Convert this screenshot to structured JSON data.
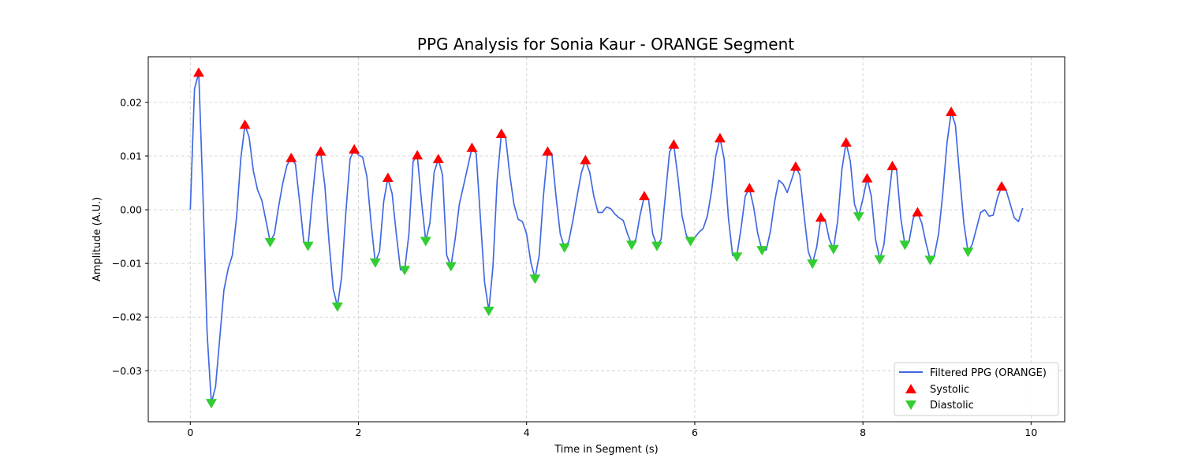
{
  "chart_data": {
    "type": "line",
    "title": "PPG Analysis for Sonia Kaur - ORANGE Segment",
    "xlabel": "Time in Segment (s)",
    "ylabel": "Amplitude (A.U.)",
    "xlim": [
      -0.5,
      10.4
    ],
    "ylim": [
      -0.0395,
      0.0285
    ],
    "xticks": [
      0,
      2,
      4,
      6,
      8,
      10
    ],
    "xtick_labels": [
      "0",
      "2",
      "4",
      "6",
      "8",
      "10"
    ],
    "yticks": [
      -0.03,
      -0.02,
      -0.01,
      0.0,
      0.01,
      0.02
    ],
    "ytick_labels": [
      "−0.03",
      "−0.02",
      "−0.01",
      "0.00",
      "0.01",
      "0.02"
    ],
    "grid": true,
    "legend_position": "lower-right",
    "colors": {
      "line": "#4169e1",
      "systolic": "#ff0000",
      "diastolic": "#32cd32"
    },
    "series": [
      {
        "name": "Filtered PPG (ORANGE)",
        "kind": "line",
        "points": [
          [
            0.0,
            0.0
          ],
          [
            0.05,
            0.0225
          ],
          [
            0.1,
            0.0255
          ],
          [
            0.15,
            0.003
          ],
          [
            0.2,
            -0.023
          ],
          [
            0.25,
            -0.036
          ],
          [
            0.3,
            -0.033
          ],
          [
            0.35,
            -0.024
          ],
          [
            0.4,
            -0.015
          ],
          [
            0.45,
            -0.011
          ],
          [
            0.5,
            -0.0085
          ],
          [
            0.55,
            -0.0015
          ],
          [
            0.6,
            0.0095
          ],
          [
            0.65,
            0.0158
          ],
          [
            0.7,
            0.0135
          ],
          [
            0.75,
            0.0072
          ],
          [
            0.8,
            0.0037
          ],
          [
            0.85,
            0.0018
          ],
          [
            0.9,
            -0.002
          ],
          [
            0.95,
            -0.006
          ],
          [
            1.0,
            -0.0045
          ],
          [
            1.05,
            0.0005
          ],
          [
            1.1,
            0.005
          ],
          [
            1.15,
            0.0083
          ],
          [
            1.2,
            0.0096
          ],
          [
            1.25,
            0.0085
          ],
          [
            1.3,
            0.0015
          ],
          [
            1.35,
            -0.006
          ],
          [
            1.4,
            -0.0067
          ],
          [
            1.45,
            0.002
          ],
          [
            1.5,
            0.0098
          ],
          [
            1.55,
            0.0108
          ],
          [
            1.6,
            0.0045
          ],
          [
            1.65,
            -0.006
          ],
          [
            1.7,
            -0.0148
          ],
          [
            1.75,
            -0.018
          ],
          [
            1.8,
            -0.0125
          ],
          [
            1.85,
            -0.0005
          ],
          [
            1.9,
            0.0095
          ],
          [
            1.95,
            0.0112
          ],
          [
            2.0,
            0.0102
          ],
          [
            2.05,
            0.0098
          ],
          [
            2.1,
            0.0062
          ],
          [
            2.15,
            -0.0025
          ],
          [
            2.2,
            -0.0098
          ],
          [
            2.25,
            -0.0078
          ],
          [
            2.3,
            0.0015
          ],
          [
            2.35,
            0.0059
          ],
          [
            2.4,
            0.003
          ],
          [
            2.45,
            -0.0045
          ],
          [
            2.5,
            -0.0112
          ],
          [
            2.55,
            -0.0112
          ],
          [
            2.6,
            -0.0045
          ],
          [
            2.65,
            0.009
          ],
          [
            2.7,
            0.0101
          ],
          [
            2.75,
            0.0015
          ],
          [
            2.8,
            -0.0058
          ],
          [
            2.85,
            -0.0025
          ],
          [
            2.9,
            0.007
          ],
          [
            2.95,
            0.0094
          ],
          [
            3.0,
            0.0065
          ],
          [
            3.05,
            -0.0085
          ],
          [
            3.1,
            -0.0105
          ],
          [
            3.15,
            -0.0055
          ],
          [
            3.2,
            0.001
          ],
          [
            3.25,
            0.0045
          ],
          [
            3.3,
            0.008
          ],
          [
            3.35,
            0.0115
          ],
          [
            3.4,
            0.0105
          ],
          [
            3.45,
            -0.0015
          ],
          [
            3.5,
            -0.0135
          ],
          [
            3.55,
            -0.0188
          ],
          [
            3.6,
            -0.0105
          ],
          [
            3.65,
            0.0055
          ],
          [
            3.7,
            0.0141
          ],
          [
            3.75,
            0.0135
          ],
          [
            3.8,
            0.0065
          ],
          [
            3.85,
            0.001
          ],
          [
            3.9,
            -0.0018
          ],
          [
            3.95,
            -0.0022
          ],
          [
            4.0,
            -0.0045
          ],
          [
            4.05,
            -0.0098
          ],
          [
            4.1,
            -0.0128
          ],
          [
            4.15,
            -0.0085
          ],
          [
            4.2,
            0.0025
          ],
          [
            4.25,
            0.0108
          ],
          [
            4.3,
            0.0105
          ],
          [
            4.35,
            0.0025
          ],
          [
            4.4,
            -0.0045
          ],
          [
            4.45,
            -0.007
          ],
          [
            4.5,
            -0.006
          ],
          [
            4.55,
            -0.002
          ],
          [
            4.6,
            0.0025
          ],
          [
            4.65,
            0.0068
          ],
          [
            4.7,
            0.0092
          ],
          [
            4.75,
            0.007
          ],
          [
            4.8,
            0.0025
          ],
          [
            4.85,
            -0.0005
          ],
          [
            4.9,
            -0.0005
          ],
          [
            4.95,
            0.0005
          ],
          [
            5.0,
            0.0002
          ],
          [
            5.05,
            -0.0008
          ],
          [
            5.1,
            -0.0015
          ],
          [
            5.15,
            -0.002
          ],
          [
            5.2,
            -0.0045
          ],
          [
            5.25,
            -0.0065
          ],
          [
            5.3,
            -0.0055
          ],
          [
            5.35,
            -0.001
          ],
          [
            5.4,
            0.0025
          ],
          [
            5.45,
            0.002
          ],
          [
            5.5,
            -0.0045
          ],
          [
            5.55,
            -0.0067
          ],
          [
            5.6,
            -0.0055
          ],
          [
            5.65,
            0.0025
          ],
          [
            5.7,
            0.0108
          ],
          [
            5.75,
            0.0121
          ],
          [
            5.8,
            0.006
          ],
          [
            5.85,
            -0.0012
          ],
          [
            5.9,
            -0.0048
          ],
          [
            5.95,
            -0.0058
          ],
          [
            6.0,
            -0.0052
          ],
          [
            6.05,
            -0.0042
          ],
          [
            6.1,
            -0.0035
          ],
          [
            6.15,
            -0.0012
          ],
          [
            6.2,
            0.0035
          ],
          [
            6.25,
            0.01
          ],
          [
            6.3,
            0.0133
          ],
          [
            6.35,
            0.0095
          ],
          [
            6.4,
            -0.0015
          ],
          [
            6.45,
            -0.0085
          ],
          [
            6.5,
            -0.0087
          ],
          [
            6.55,
            -0.0035
          ],
          [
            6.6,
            0.0025
          ],
          [
            6.65,
            0.004
          ],
          [
            6.7,
            0.0005
          ],
          [
            6.75,
            -0.0045
          ],
          [
            6.8,
            -0.0075
          ],
          [
            6.85,
            -0.0075
          ],
          [
            6.9,
            -0.004
          ],
          [
            6.95,
            0.0015
          ],
          [
            7.0,
            0.0055
          ],
          [
            7.05,
            0.0048
          ],
          [
            7.1,
            0.0032
          ],
          [
            7.15,
            0.0055
          ],
          [
            7.2,
            0.008
          ],
          [
            7.25,
            0.0065
          ],
          [
            7.3,
            -0.001
          ],
          [
            7.35,
            -0.0078
          ],
          [
            7.4,
            -0.01
          ],
          [
            7.45,
            -0.007
          ],
          [
            7.5,
            -0.0015
          ],
          [
            7.55,
            -0.0018
          ],
          [
            7.6,
            -0.0055
          ],
          [
            7.65,
            -0.0073
          ],
          [
            7.7,
            -0.002
          ],
          [
            7.75,
            0.0075
          ],
          [
            7.8,
            0.0125
          ],
          [
            7.85,
            0.009
          ],
          [
            7.9,
            0.001
          ],
          [
            7.95,
            -0.0012
          ],
          [
            8.0,
            0.002
          ],
          [
            8.05,
            0.0058
          ],
          [
            8.1,
            0.0025
          ],
          [
            8.15,
            -0.0055
          ],
          [
            8.2,
            -0.0092
          ],
          [
            8.25,
            -0.0065
          ],
          [
            8.3,
            0.001
          ],
          [
            8.35,
            0.0081
          ],
          [
            8.4,
            0.0075
          ],
          [
            8.45,
            -0.0015
          ],
          [
            8.5,
            -0.0065
          ],
          [
            8.55,
            -0.0058
          ],
          [
            8.6,
            -0.0015
          ],
          [
            8.65,
            -0.0005
          ],
          [
            8.7,
            -0.0025
          ],
          [
            8.75,
            -0.0062
          ],
          [
            8.8,
            -0.0093
          ],
          [
            8.85,
            -0.0085
          ],
          [
            8.9,
            -0.0045
          ],
          [
            8.95,
            0.003
          ],
          [
            9.0,
            0.0125
          ],
          [
            9.05,
            0.0182
          ],
          [
            9.1,
            0.0158
          ],
          [
            9.15,
            0.0065
          ],
          [
            9.2,
            -0.0025
          ],
          [
            9.25,
            -0.0078
          ],
          [
            9.3,
            -0.0065
          ],
          [
            9.35,
            -0.0035
          ],
          [
            9.4,
            -0.0005
          ],
          [
            9.45,
            0.0
          ],
          [
            9.5,
            -0.0012
          ],
          [
            9.55,
            -0.001
          ],
          [
            9.6,
            0.0022
          ],
          [
            9.65,
            0.0043
          ],
          [
            9.7,
            0.0038
          ],
          [
            9.75,
            0.0012
          ],
          [
            9.8,
            -0.0015
          ],
          [
            9.85,
            -0.0022
          ],
          [
            9.9,
            0.0003
          ]
        ]
      },
      {
        "name": "Systolic",
        "kind": "marker-up",
        "points": [
          [
            0.1,
            0.0255
          ],
          [
            0.65,
            0.0158
          ],
          [
            1.2,
            0.0096
          ],
          [
            1.55,
            0.0108
          ],
          [
            1.95,
            0.0112
          ],
          [
            2.35,
            0.0059
          ],
          [
            2.7,
            0.0101
          ],
          [
            2.95,
            0.0094
          ],
          [
            3.35,
            0.0115
          ],
          [
            3.7,
            0.0141
          ],
          [
            4.25,
            0.0108
          ],
          [
            4.7,
            0.0092
          ],
          [
            5.4,
            0.0025
          ],
          [
            5.75,
            0.0121
          ],
          [
            6.3,
            0.0133
          ],
          [
            6.65,
            0.004
          ],
          [
            7.2,
            0.008
          ],
          [
            7.5,
            -0.0015
          ],
          [
            7.8,
            0.0125
          ],
          [
            8.05,
            0.0058
          ],
          [
            8.35,
            0.0081
          ],
          [
            8.65,
            -0.0005
          ],
          [
            9.05,
            0.0182
          ],
          [
            9.65,
            0.0043
          ]
        ]
      },
      {
        "name": "Diastolic",
        "kind": "marker-down",
        "points": [
          [
            0.25,
            -0.036
          ],
          [
            0.95,
            -0.006
          ],
          [
            1.4,
            -0.0067
          ],
          [
            1.75,
            -0.018
          ],
          [
            2.2,
            -0.0098
          ],
          [
            2.55,
            -0.0112
          ],
          [
            2.8,
            -0.0058
          ],
          [
            3.1,
            -0.0105
          ],
          [
            3.55,
            -0.0188
          ],
          [
            4.1,
            -0.0128
          ],
          [
            4.45,
            -0.007
          ],
          [
            5.25,
            -0.0065
          ],
          [
            5.55,
            -0.0067
          ],
          [
            5.95,
            -0.0058
          ],
          [
            6.5,
            -0.0087
          ],
          [
            6.8,
            -0.0075
          ],
          [
            7.4,
            -0.01
          ],
          [
            7.65,
            -0.0073
          ],
          [
            7.95,
            -0.0012
          ],
          [
            8.2,
            -0.0092
          ],
          [
            8.5,
            -0.0065
          ],
          [
            8.8,
            -0.0093
          ],
          [
            9.25,
            -0.0078
          ]
        ]
      }
    ]
  }
}
